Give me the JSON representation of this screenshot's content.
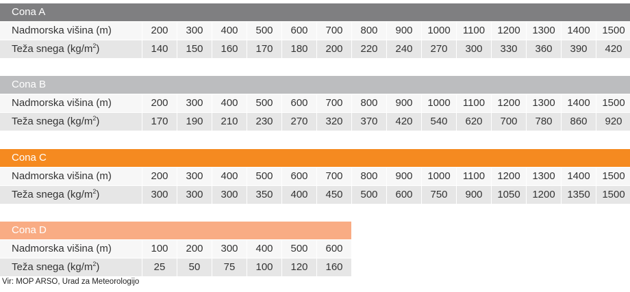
{
  "row_labels": {
    "altitude": "Nadmorska višina (m)",
    "snow_prefix": "Teža snega (kg/m",
    "snow_sup": "2",
    "snow_suffix": ")"
  },
  "zones": [
    {
      "title": "Cona A",
      "color": "#7f7f81",
      "altitude": [
        "200",
        "300",
        "400",
        "500",
        "600",
        "700",
        "800",
        "900",
        "1000",
        "1100",
        "1200",
        "1300",
        "1400",
        "1500"
      ],
      "snow_load": [
        "140",
        "150",
        "160",
        "170",
        "180",
        "200",
        "220",
        "240",
        "270",
        "300",
        "330",
        "360",
        "390",
        "420"
      ]
    },
    {
      "title": "Cona B",
      "color": "#bcbdbf",
      "altitude": [
        "200",
        "300",
        "400",
        "500",
        "600",
        "700",
        "800",
        "900",
        "1000",
        "1100",
        "1200",
        "1300",
        "1400",
        "1500"
      ],
      "snow_load": [
        "170",
        "190",
        "210",
        "230",
        "270",
        "320",
        "370",
        "420",
        "540",
        "620",
        "700",
        "780",
        "860",
        "920"
      ]
    },
    {
      "title": "Cona C",
      "color": "#f58a20",
      "altitude": [
        "200",
        "300",
        "400",
        "500",
        "600",
        "700",
        "800",
        "900",
        "1000",
        "1100",
        "1200",
        "1300",
        "1400",
        "1500"
      ],
      "snow_load": [
        "300",
        "300",
        "300",
        "350",
        "400",
        "450",
        "500",
        "600",
        "750",
        "900",
        "1050",
        "1200",
        "1350",
        "1500"
      ]
    },
    {
      "title": "Cona D",
      "color": "#f9ac84",
      "altitude": [
        "100",
        "200",
        "300",
        "400",
        "500",
        "600"
      ],
      "snow_load": [
        "25",
        "50",
        "75",
        "100",
        "120",
        "160"
      ]
    }
  ],
  "source": "Vir: MOP ARSO, Urad za Meteorologijo"
}
